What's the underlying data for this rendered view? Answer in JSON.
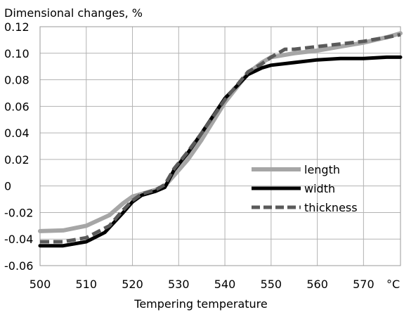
{
  "chart_data": {
    "type": "line",
    "title": "Dimensional changes, %",
    "xlabel": "Tempering temperature",
    "x_unit": "°C",
    "xlim": [
      500,
      578
    ],
    "ylim": [
      -0.06,
      0.12
    ],
    "x_ticks": [
      500,
      510,
      520,
      530,
      540,
      550,
      560,
      570
    ],
    "y_ticks": [
      -0.06,
      -0.04,
      -0.02,
      0,
      0.02,
      0.04,
      0.06,
      0.08,
      0.1,
      0.12
    ],
    "y_tick_labels": [
      "-0.06",
      "-0.04",
      "-0.02",
      "0",
      "0.02",
      "0.04",
      "0.06",
      "0.08",
      "0.10",
      "0.12"
    ],
    "grid": true,
    "legend_position": "lower-right",
    "series": [
      {
        "name": "length",
        "color": "#a6a6a6",
        "style": "solid",
        "x": [
          500,
          505,
          510,
          515,
          518,
          520,
          522,
          525,
          527,
          529,
          532,
          535,
          540,
          545,
          548,
          550,
          555,
          560,
          565,
          570,
          575,
          578
        ],
        "y": [
          -0.034,
          -0.0335,
          -0.03,
          -0.022,
          -0.013,
          -0.008,
          -0.006,
          -0.003,
          0.0,
          0.008,
          0.02,
          0.035,
          0.063,
          0.085,
          0.093,
          0.097,
          0.1,
          0.102,
          0.105,
          0.108,
          0.112,
          0.115
        ]
      },
      {
        "name": "width",
        "color": "#000000",
        "style": "solid",
        "x": [
          500,
          505,
          510,
          514,
          518,
          520,
          522,
          525,
          527,
          529,
          532,
          535,
          540,
          545,
          548,
          550,
          555,
          560,
          565,
          570,
          575,
          578
        ],
        "y": [
          -0.045,
          -0.045,
          -0.042,
          -0.035,
          -0.02,
          -0.012,
          -0.007,
          -0.004,
          -0.001,
          0.012,
          0.025,
          0.04,
          0.066,
          0.084,
          0.089,
          0.091,
          0.093,
          0.095,
          0.096,
          0.096,
          0.097,
          0.097
        ]
      },
      {
        "name": "thickness",
        "color": "#5a5a5a",
        "style": "dashed",
        "x": [
          500,
          505,
          510,
          515,
          518,
          520,
          522,
          525,
          527,
          529,
          532,
          535,
          540,
          545,
          548,
          550,
          553,
          555,
          560,
          565,
          570,
          575,
          578
        ],
        "y": [
          -0.042,
          -0.042,
          -0.039,
          -0.03,
          -0.018,
          -0.011,
          -0.006,
          -0.003,
          0.001,
          0.013,
          0.026,
          0.04,
          0.065,
          0.086,
          0.092,
          0.097,
          0.103,
          0.103,
          0.105,
          0.107,
          0.109,
          0.112,
          0.114
        ]
      }
    ]
  }
}
